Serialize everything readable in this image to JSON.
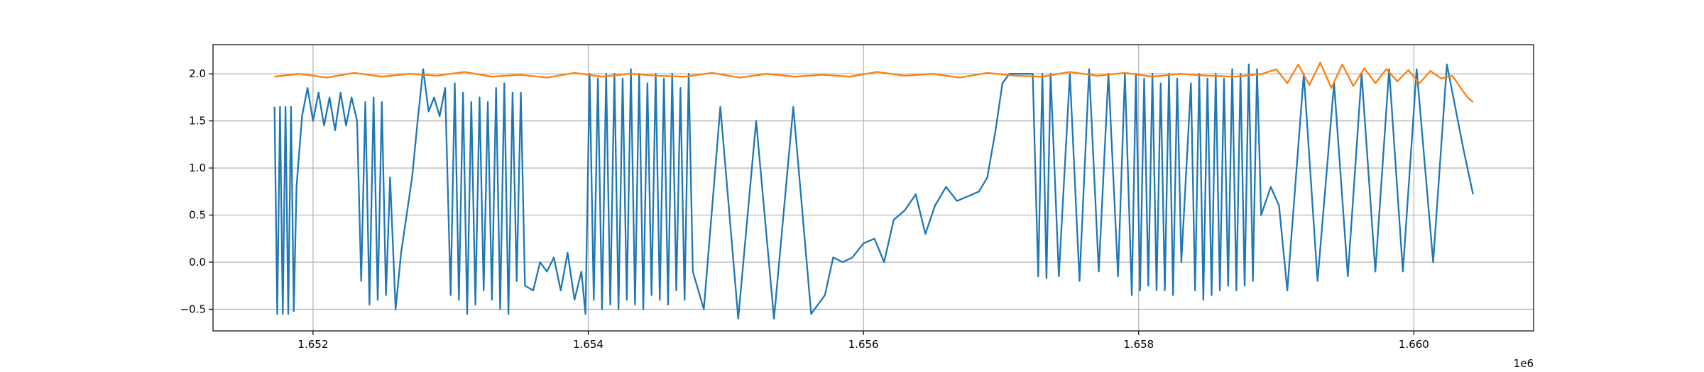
{
  "chart_data": {
    "type": "line",
    "x_offset_label": "1e6",
    "xlim": [
      1651273,
      1660870
    ],
    "ylim": [
      -0.73,
      2.31
    ],
    "xticks": [
      {
        "value": 1652000,
        "label": "1.652"
      },
      {
        "value": 1654000,
        "label": "1.654"
      },
      {
        "value": 1656000,
        "label": "1.656"
      },
      {
        "value": 1658000,
        "label": "1.658"
      },
      {
        "value": 1660000,
        "label": "1.660"
      }
    ],
    "yticks": [
      {
        "value": -0.5,
        "label": "−0.5"
      },
      {
        "value": 0,
        "label": "0.0"
      },
      {
        "value": 0.5,
        "label": "0.5"
      },
      {
        "value": 1,
        "label": "1.0"
      },
      {
        "value": 1.5,
        "label": "1.5"
      },
      {
        "value": 2,
        "label": "2.0"
      }
    ],
    "grid": true,
    "series": [
      {
        "color": "#1f77b4",
        "x": [
          1651720,
          1651740,
          1651760,
          1651780,
          1651800,
          1651820,
          1651840,
          1651860,
          1651880,
          1651920,
          1651960,
          1652000,
          1652040,
          1652080,
          1652120,
          1652160,
          1652200,
          1652240,
          1652280,
          1652320,
          1652350,
          1652380,
          1652410,
          1652440,
          1652470,
          1652500,
          1652530,
          1652560,
          1652600,
          1652640,
          1652680,
          1652720,
          1652760,
          1652800,
          1652840,
          1652880,
          1652920,
          1652960,
          1653000,
          1653030,
          1653060,
          1653090,
          1653120,
          1653150,
          1653180,
          1653210,
          1653240,
          1653270,
          1653300,
          1653330,
          1653360,
          1653390,
          1653420,
          1653450,
          1653480,
          1653510,
          1653540,
          1653600,
          1653650,
          1653700,
          1653750,
          1653800,
          1653850,
          1653900,
          1653950,
          1653980,
          1654010,
          1654040,
          1654070,
          1654100,
          1654130,
          1654160,
          1654190,
          1654220,
          1654250,
          1654280,
          1654310,
          1654340,
          1654370,
          1654400,
          1654430,
          1654460,
          1654490,
          1654520,
          1654550,
          1654580,
          1654610,
          1654640,
          1654670,
          1654700,
          1654730,
          1654760,
          1654840,
          1654960,
          1655090,
          1655220,
          1655350,
          1655490,
          1655620,
          1655720,
          1655780,
          1655850,
          1655920,
          1656000,
          1656080,
          1656150,
          1656220,
          1656300,
          1656380,
          1656450,
          1656520,
          1656600,
          1656680,
          1656760,
          1656840,
          1656900,
          1656960,
          1657010,
          1657060,
          1657150,
          1657230,
          1657270,
          1657300,
          1657330,
          1657360,
          1657420,
          1657500,
          1657570,
          1657640,
          1657710,
          1657780,
          1657850,
          1657900,
          1657950,
          1657980,
          1658010,
          1658040,
          1658070,
          1658100,
          1658130,
          1658160,
          1658190,
          1658220,
          1658250,
          1658280,
          1658310,
          1658380,
          1658410,
          1658440,
          1658470,
          1658500,
          1658530,
          1658560,
          1658590,
          1658620,
          1658650,
          1658680,
          1658710,
          1658740,
          1658770,
          1658800,
          1658830,
          1658860,
          1658890,
          1658960,
          1659020,
          1659080,
          1659200,
          1659300,
          1659420,
          1659520,
          1659620,
          1659720,
          1659820,
          1659920,
          1660020,
          1660140,
          1660240,
          1660360,
          1660430
        ],
        "values": [
          1.65,
          -0.55,
          1.65,
          -0.55,
          1.65,
          -0.55,
          1.65,
          -0.52,
          0.8,
          1.55,
          1.85,
          1.5,
          1.8,
          1.45,
          1.75,
          1.4,
          1.8,
          1.45,
          1.75,
          1.5,
          -0.2,
          1.7,
          -0.45,
          1.75,
          -0.4,
          1.7,
          -0.35,
          0.9,
          -0.5,
          0.1,
          0.5,
          0.9,
          1.5,
          2.05,
          1.6,
          1.75,
          1.55,
          1.85,
          -0.35,
          1.9,
          -0.4,
          1.8,
          -0.55,
          1.7,
          -0.45,
          1.75,
          -0.3,
          1.7,
          -0.4,
          1.85,
          -0.5,
          1.9,
          -0.55,
          1.8,
          -0.2,
          1.8,
          -0.25,
          -0.3,
          0.0,
          -0.1,
          0.05,
          -0.3,
          0.1,
          -0.4,
          -0.1,
          -0.55,
          2.0,
          -0.4,
          1.95,
          -0.5,
          2.0,
          -0.45,
          2.0,
          -0.5,
          1.95,
          -0.4,
          2.05,
          -0.45,
          2.0,
          -0.5,
          1.9,
          -0.35,
          2.0,
          -0.4,
          1.95,
          -0.45,
          2.0,
          -0.3,
          1.85,
          -0.4,
          2.0,
          -0.1,
          -0.5,
          1.65,
          -0.6,
          1.5,
          -0.6,
          1.65,
          -0.55,
          -0.35,
          0.05,
          0.0,
          0.05,
          0.2,
          0.25,
          0.0,
          0.45,
          0.55,
          0.72,
          0.3,
          0.6,
          0.8,
          0.65,
          0.7,
          0.75,
          0.9,
          1.4,
          1.9,
          2.0,
          2.0,
          2.0,
          -0.15,
          2.0,
          -0.17,
          2.0,
          -0.15,
          2.0,
          -0.2,
          2.05,
          -0.1,
          2.0,
          -0.15,
          2.0,
          -0.35,
          2.0,
          -0.3,
          1.95,
          -0.25,
          2.0,
          -0.3,
          1.9,
          -0.3,
          2.0,
          -0.35,
          1.95,
          0.0,
          1.9,
          -0.3,
          2.0,
          -0.4,
          1.95,
          -0.35,
          2.0,
          -0.3,
          1.95,
          -0.25,
          2.05,
          -0.3,
          2.0,
          -0.25,
          2.1,
          -0.2,
          2.05,
          0.5,
          0.8,
          0.6,
          -0.3,
          2.0,
          -0.2,
          1.9,
          -0.15,
          2.0,
          -0.1,
          2.05,
          -0.1,
          2.05,
          0.0,
          2.1,
          1.2,
          0.72
        ]
      },
      {
        "color": "#ff7f0e",
        "x": [
          1651720,
          1651900,
          1652100,
          1652300,
          1652500,
          1652700,
          1652900,
          1653100,
          1653300,
          1653500,
          1653700,
          1653900,
          1654100,
          1654300,
          1654500,
          1654700,
          1654900,
          1655100,
          1655300,
          1655500,
          1655700,
          1655900,
          1656100,
          1656300,
          1656500,
          1656700,
          1656900,
          1657100,
          1657300,
          1657500,
          1657700,
          1657900,
          1658100,
          1658300,
          1658500,
          1658700,
          1658900,
          1659000,
          1659080,
          1659160,
          1659240,
          1659320,
          1659400,
          1659480,
          1659560,
          1659640,
          1659720,
          1659800,
          1659880,
          1659960,
          1660040,
          1660120,
          1660200,
          1660280,
          1660340,
          1660390,
          1660430
        ],
        "values": [
          1.97,
          2.0,
          1.96,
          2.01,
          1.97,
          2.0,
          1.98,
          2.02,
          1.97,
          1.99,
          1.96,
          2.01,
          1.97,
          2.0,
          1.98,
          1.97,
          2.01,
          1.96,
          2.0,
          1.97,
          1.99,
          1.97,
          2.02,
          1.98,
          2.0,
          1.96,
          2.01,
          1.98,
          1.97,
          2.02,
          1.98,
          2.01,
          1.97,
          2.0,
          1.98,
          1.97,
          2.0,
          2.05,
          1.9,
          2.1,
          1.88,
          2.12,
          1.85,
          2.1,
          1.87,
          2.06,
          1.9,
          2.05,
          1.92,
          2.04,
          1.9,
          2.03,
          1.95,
          1.98,
          1.85,
          1.75,
          1.7
        ]
      }
    ]
  }
}
